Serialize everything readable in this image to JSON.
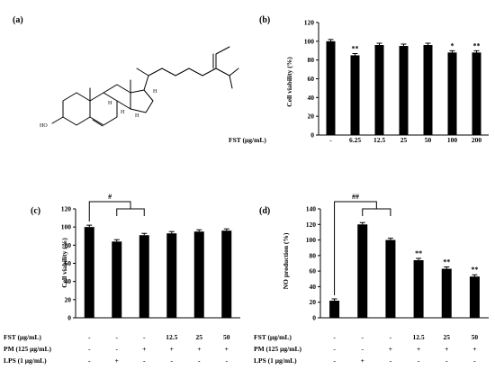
{
  "panel_labels": [
    "(a)",
    "(b)",
    "(c)",
    "(d)"
  ],
  "molecule": {
    "atom_labels": [
      "HO",
      "H",
      "H",
      "H",
      "H"
    ]
  },
  "chart_data": [
    {
      "type": "bar",
      "panel": "(b)",
      "ylabel": "Cell viability (%)",
      "ylim": [
        0,
        120
      ],
      "yticks": [
        0,
        20,
        40,
        60,
        80,
        100,
        120
      ],
      "categories": [
        "-",
        "6.25",
        "12.5",
        "25",
        "50",
        "100",
        "200"
      ],
      "values": [
        100,
        85,
        96,
        95,
        96,
        88,
        88
      ],
      "annotations": [
        "",
        "**",
        "",
        "",
        "",
        "*",
        "**"
      ],
      "condition_rows": [
        {
          "label": "FST (μg/mL)",
          "values": [
            "-",
            "6.25",
            "12.5",
            "25",
            "50",
            "100",
            "200"
          ]
        }
      ]
    },
    {
      "type": "bar",
      "panel": "(c)",
      "ylabel": "Cell viability (%)",
      "ylim": [
        0,
        120
      ],
      "yticks": [
        0,
        20,
        40,
        60,
        80,
        100,
        120
      ],
      "categories": [
        "1",
        "2",
        "3",
        "4",
        "5",
        "6"
      ],
      "values": [
        100,
        84,
        91,
        93,
        95,
        96
      ],
      "annotations": [
        "",
        "",
        "",
        "",
        "",
        ""
      ],
      "significance": {
        "label": "#",
        "from": 0,
        "to": [
          1,
          2
        ]
      },
      "condition_rows": [
        {
          "label": "FST (μg/mL)",
          "values": [
            "-",
            "-",
            "-",
            "12.5",
            "25",
            "50"
          ]
        },
        {
          "label": "PM (125 μg/mL)",
          "values": [
            "-",
            "-",
            "+",
            "+",
            "+",
            "+"
          ]
        },
        {
          "label": "LPS (1 μg/mL)",
          "values": [
            "-",
            "+",
            "-",
            "-",
            "-",
            "-"
          ]
        }
      ]
    },
    {
      "type": "bar",
      "panel": "(d)",
      "ylabel": "NO production (%)",
      "ylim": [
        0,
        140
      ],
      "yticks": [
        0,
        20,
        40,
        60,
        80,
        100,
        120,
        140
      ],
      "categories": [
        "1",
        "2",
        "3",
        "4",
        "5",
        "6"
      ],
      "values": [
        22,
        120,
        100,
        74,
        63,
        53
      ],
      "annotations": [
        "",
        "",
        "",
        "**",
        "**",
        "**"
      ],
      "significance": {
        "label": "##",
        "from": 0,
        "to": [
          1,
          2
        ]
      },
      "condition_rows": [
        {
          "label": "FST (μg/mL)",
          "values": [
            "-",
            "-",
            "-",
            "12.5",
            "25",
            "50"
          ]
        },
        {
          "label": "PM (125 μg/mL)",
          "values": [
            "-",
            "-",
            "+",
            "+",
            "+",
            "+"
          ]
        },
        {
          "label": "LPS (1 μg/mL)",
          "values": [
            "-",
            "+",
            "-",
            "-",
            "-",
            "-"
          ]
        }
      ]
    }
  ]
}
